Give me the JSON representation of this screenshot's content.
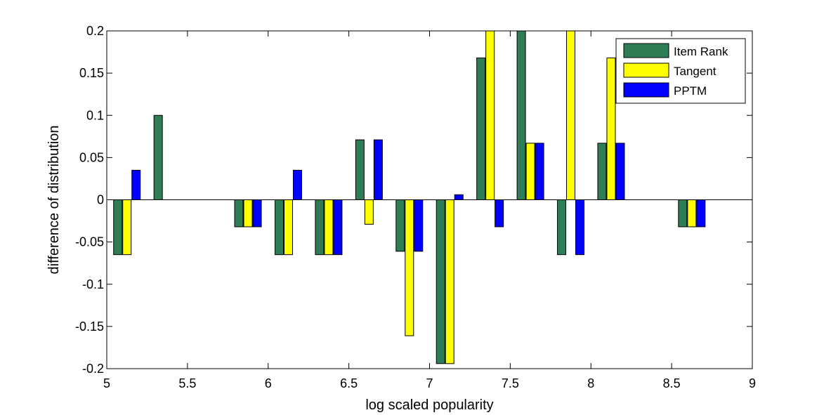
{
  "chart_data": {
    "type": "bar",
    "xlabel": "log scaled popularity",
    "ylabel": "difference of distribution",
    "xlim": [
      5,
      9
    ],
    "ylim": [
      -0.2,
      0.2
    ],
    "xticks": [
      "5",
      "5.5",
      "6",
      "6.5",
      "7",
      "7.5",
      "8",
      "8.5",
      "9"
    ],
    "yticks": [
      "-0.2",
      "-0.15",
      "-0.1",
      "-0.05",
      "0",
      "0.05",
      "0.1",
      "0.15",
      "0.2"
    ],
    "bin_centers": [
      5.125,
      5.375,
      5.625,
      5.875,
      6.125,
      6.375,
      6.625,
      6.875,
      7.125,
      7.375,
      7.625,
      7.875,
      8.125,
      8.375,
      8.625
    ],
    "series": [
      {
        "name": "Item Rank",
        "color": "#2e7d55",
        "values": [
          -0.065,
          0.1,
          0,
          -0.032,
          -0.065,
          -0.065,
          0.071,
          -0.061,
          -0.194,
          0.168,
          0.2,
          -0.065,
          0.067,
          0,
          -0.032
        ]
      },
      {
        "name": "Tangent",
        "color": "#ffff00",
        "values": [
          -0.065,
          0,
          0,
          -0.032,
          -0.065,
          -0.065,
          -0.029,
          -0.161,
          -0.194,
          0.2,
          0.067,
          0.2,
          0.168,
          0,
          -0.032
        ]
      },
      {
        "name": "PPTM",
        "color": "#0000ff",
        "values": [
          0.035,
          0,
          0,
          -0.032,
          0.035,
          -0.065,
          0.071,
          -0.061,
          0.006,
          -0.032,
          0.067,
          -0.065,
          0.067,
          0,
          -0.032
        ]
      }
    ],
    "grid": false,
    "legend_position": "top-right"
  }
}
